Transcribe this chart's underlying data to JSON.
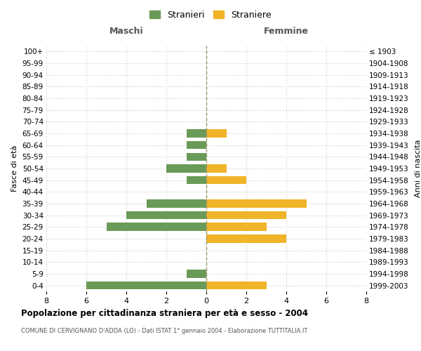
{
  "age_groups": [
    "100+",
    "95-99",
    "90-94",
    "85-89",
    "80-84",
    "75-79",
    "70-74",
    "65-69",
    "60-64",
    "55-59",
    "50-54",
    "45-49",
    "40-44",
    "35-39",
    "30-34",
    "25-29",
    "20-24",
    "15-19",
    "10-14",
    "5-9",
    "0-4"
  ],
  "birth_years": [
    "≤ 1903",
    "1904-1908",
    "1909-1913",
    "1914-1918",
    "1919-1923",
    "1924-1928",
    "1929-1933",
    "1934-1938",
    "1939-1943",
    "1944-1948",
    "1949-1953",
    "1954-1958",
    "1959-1963",
    "1964-1968",
    "1969-1973",
    "1974-1978",
    "1979-1983",
    "1984-1988",
    "1989-1993",
    "1994-1998",
    "1999-2003"
  ],
  "males": [
    0,
    0,
    0,
    0,
    0,
    0,
    0,
    1,
    1,
    1,
    2,
    1,
    0,
    3,
    4,
    5,
    0,
    0,
    0,
    1,
    6
  ],
  "females": [
    0,
    0,
    0,
    0,
    0,
    0,
    0,
    1,
    0,
    0,
    1,
    2,
    0,
    5,
    4,
    3,
    4,
    0,
    0,
    0,
    3
  ],
  "male_color": "#6a9a57",
  "female_color": "#f0b429",
  "bar_height": 0.7,
  "xlim": 8,
  "title": "Popolazione per cittadinanza straniera per età e sesso - 2004",
  "subtitle": "COMUNE DI CERVIGNANO D'ADDA (LO) - Dati ISTAT 1° gennaio 2004 - Elaborazione TUTTITALIA.IT",
  "ylabel_left": "Fasce di età",
  "ylabel_right": "Anni di nascita",
  "xlabel_left": "Maschi",
  "xlabel_right": "Femmine",
  "legend_males": "Stranieri",
  "legend_females": "Straniere",
  "background_color": "#ffffff",
  "grid_color": "#cccccc",
  "center_line_color": "#999966"
}
